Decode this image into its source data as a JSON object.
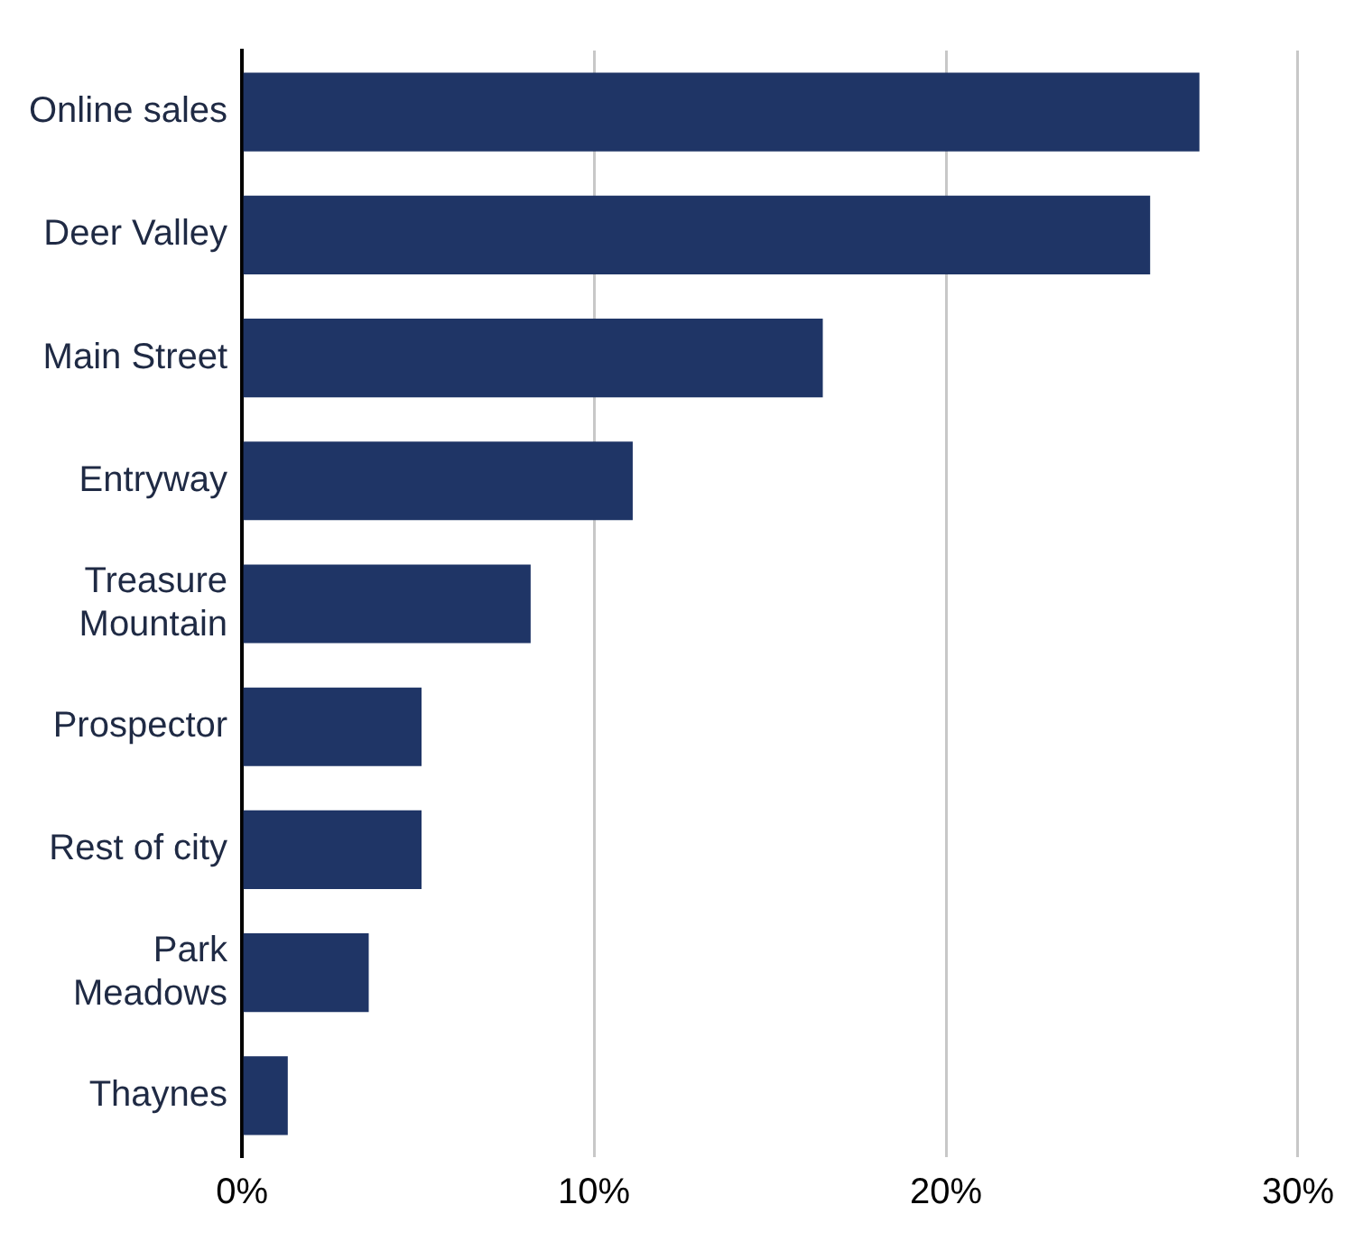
{
  "chart_data": {
    "type": "bar",
    "orientation": "horizontal",
    "categories": [
      "Online sales",
      "Deer Valley",
      "Main Street",
      "Entryway",
      "Treasure Mountain",
      "Prospector",
      "Rest of city",
      "Park Meadows",
      "Thaynes"
    ],
    "values": [
      27.2,
      25.8,
      16.5,
      11.1,
      8.2,
      5.1,
      5.1,
      3.6,
      1.3
    ],
    "color": "#1f3566",
    "xlim": [
      0,
      30
    ],
    "xticks": [
      {
        "value": 0,
        "label": "0%"
      },
      {
        "value": 10,
        "label": "10%"
      },
      {
        "value": 20,
        "label": "20%"
      },
      {
        "value": 30,
        "label": "30%"
      }
    ],
    "grid": "x",
    "legend": false
  }
}
